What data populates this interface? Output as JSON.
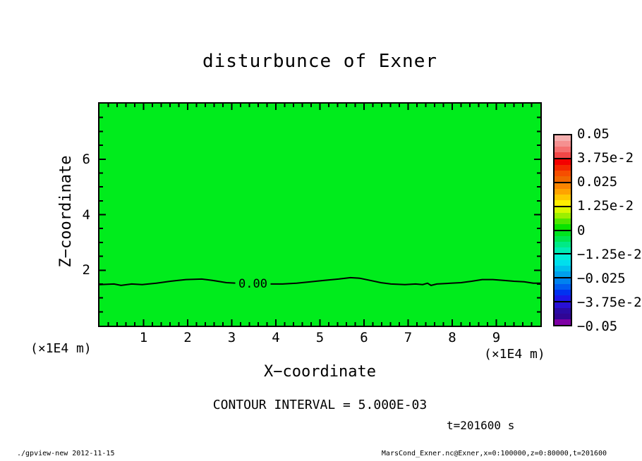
{
  "chart_data": {
    "type": "filled-contour",
    "title": "disturbunce of Exner",
    "xlabel": "X−coordinate",
    "ylabel": "Z−coordinate",
    "x_unit_label": "(×1E4 m)",
    "xlim": [
      0,
      10
    ],
    "zlim": [
      0,
      8
    ],
    "x_major_ticks": [
      1,
      2,
      3,
      4,
      5,
      6,
      7,
      8,
      9
    ],
    "x_minor_step": 0.2,
    "z_major_ticks": [
      2,
      4,
      6
    ],
    "z_minor_step": 0.5,
    "field_fill_color": "#00EC1C",
    "contour_interval": 0.005,
    "zero_contour": {
      "label": "0.00",
      "label_x": 3.48,
      "label_z": 1.52,
      "points_x_z": [
        [
          0,
          1.48
        ],
        [
          0.33,
          1.5
        ],
        [
          0.49,
          1.45
        ],
        [
          0.73,
          1.5
        ],
        [
          0.97,
          1.48
        ],
        [
          1.29,
          1.53
        ],
        [
          1.61,
          1.6
        ],
        [
          1.96,
          1.66
        ],
        [
          2.32,
          1.68
        ],
        [
          2.56,
          1.63
        ],
        [
          2.88,
          1.55
        ],
        [
          3.12,
          1.53
        ],
        [
          3.83,
          1.5
        ],
        [
          4.15,
          1.5
        ],
        [
          4.47,
          1.53
        ],
        [
          4.79,
          1.58
        ],
        [
          5.1,
          1.63
        ],
        [
          5.42,
          1.68
        ],
        [
          5.69,
          1.73
        ],
        [
          5.9,
          1.71
        ],
        [
          6.14,
          1.63
        ],
        [
          6.38,
          1.55
        ],
        [
          6.61,
          1.5
        ],
        [
          6.93,
          1.48
        ],
        [
          7.17,
          1.5
        ],
        [
          7.33,
          1.48
        ],
        [
          7.44,
          1.53
        ],
        [
          7.52,
          1.45
        ],
        [
          7.65,
          1.5
        ],
        [
          7.97,
          1.53
        ],
        [
          8.2,
          1.55
        ],
        [
          8.44,
          1.6
        ],
        [
          8.68,
          1.66
        ],
        [
          8.92,
          1.66
        ],
        [
          9.16,
          1.63
        ],
        [
          9.4,
          1.6
        ],
        [
          9.63,
          1.58
        ],
        [
          9.84,
          1.53
        ],
        [
          10,
          1.53
        ]
      ]
    },
    "colorbar": {
      "labels": [
        "0.05",
        "3.75e-2",
        "0.025",
        "1.25e-2",
        "0",
        "−1.25e-2",
        "−0.025",
        "−3.75e-2",
        "−0.05"
      ],
      "segments": [
        [
          "#F5AFAF",
          "#F59090",
          "#F57070",
          "#F24848"
        ],
        [
          "#F40000",
          "#F42800",
          "#F64E00",
          "#F06800"
        ],
        [
          "#FB8500",
          "#FFA300",
          "#FFC800",
          "#FFEE00"
        ],
        [
          "#D8F800",
          "#9CEF00",
          "#50E700",
          "#0AE300"
        ],
        [
          "#00E41E",
          "#00E650",
          "#00EA86",
          "#00EDB4"
        ],
        [
          "#00EFD8",
          "#00DFED",
          "#00C0ED",
          "#00A0ED"
        ],
        [
          "#0082EF",
          "#005CF1",
          "#0032F1",
          "#1C16E9"
        ],
        [
          "#2810D6",
          "#2B0BA4",
          "#300695",
          "#7E00A4"
        ]
      ]
    }
  },
  "annotations": {
    "contour_interval_text": "CONTOUR INTERVAL = 5.000E-03",
    "time_text": "t=201600 s"
  },
  "footer": {
    "left": "./gpview-new  2012-11-15",
    "right": "MarsCond_Exner.nc@Exner,x=0:100000,z=0:80000,t=201600"
  }
}
